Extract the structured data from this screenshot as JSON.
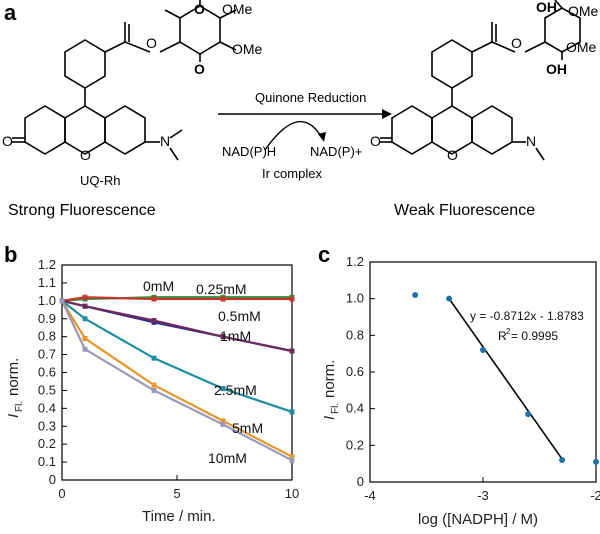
{
  "panel_a": {
    "letter": "a",
    "molecule_name": "UQ-Rh",
    "reaction_label": "Quinone Reduction",
    "cofactor_in": "NAD(P)H",
    "cofactor_out": "NAD(P)+",
    "catalyst": "Ir complex",
    "left_caption": "Strong Fluorescence",
    "right_caption": "Weak Fluorescence",
    "atoms": {
      "O": "O",
      "OH": "OH",
      "OMe": "OMe",
      "NMe2": "N"
    }
  },
  "chart_data": [
    {
      "panel": "b",
      "type": "line",
      "ylabel_main": "I",
      "ylabel_sub": "Fl.",
      "ylabel_rest": " norm.",
      "xlabel": "Time / min.",
      "xlim": [
        0,
        10
      ],
      "ylim": [
        0,
        1.2
      ],
      "xticks": [
        0,
        5,
        10
      ],
      "yticks": [
        0,
        0.1,
        0.2,
        0.3,
        0.4,
        0.5,
        0.6,
        0.7,
        0.8,
        0.9,
        1.0,
        1.1,
        1.2
      ],
      "ytick_labels": [
        "0",
        "0.1",
        "0.2",
        "0.3",
        "0.4",
        "0.5",
        "0.6",
        "0.7",
        "0.8",
        "0.9",
        "1.0",
        "1.1",
        "1.2"
      ],
      "unit": "mM",
      "series": [
        {
          "name": "0",
          "color": "#3a8a3a",
          "x": [
            0,
            1,
            4,
            7,
            10
          ],
          "y": [
            1.0,
            1.01,
            1.02,
            1.02,
            1.02
          ]
        },
        {
          "name": "0.25",
          "color": "#c0392b",
          "x": [
            0,
            1,
            4,
            7,
            10
          ],
          "y": [
            1.0,
            1.02,
            1.01,
            1.01,
            1.01
          ]
        },
        {
          "name": "0.5",
          "color": "#2e2e8f",
          "x": [
            0,
            1,
            4,
            7,
            10
          ],
          "y": [
            1.0,
            0.97,
            0.88,
            0.8,
            0.72
          ]
        },
        {
          "name": "1",
          "color": "#6b2a5b",
          "x": [
            0,
            1,
            4,
            7,
            10
          ],
          "y": [
            1.0,
            0.97,
            0.89,
            0.8,
            0.72
          ]
        },
        {
          "name": "2.5",
          "color": "#1f8ea3",
          "x": [
            0,
            1,
            4,
            7,
            10
          ],
          "y": [
            1.0,
            0.9,
            0.68,
            0.51,
            0.38
          ]
        },
        {
          "name": "5",
          "color": "#e8962a",
          "x": [
            0,
            1,
            4,
            7,
            10
          ],
          "y": [
            1.0,
            0.79,
            0.53,
            0.33,
            0.13
          ]
        },
        {
          "name": "10",
          "color": "#9a9ab8",
          "x": [
            0,
            1,
            4,
            7,
            10
          ],
          "y": [
            1.0,
            0.73,
            0.5,
            0.31,
            0.11
          ]
        }
      ],
      "annotations": [
        "0mM",
        "0.25mM",
        "0.5mM",
        "1mM",
        "2.5mM",
        "5mM",
        "10mM"
      ]
    },
    {
      "panel": "c",
      "type": "scatter",
      "xlabel": "log ([NADPH] / M)",
      "ylabel_main": "I",
      "ylabel_sub": "Fl.",
      "ylabel_rest": " norm.",
      "xlim": [
        -4,
        -2
      ],
      "ylim": [
        0,
        1.2
      ],
      "xticks": [
        -4,
        -3,
        -2
      ],
      "yticks": [
        0,
        0.2,
        0.4,
        0.6,
        0.8,
        1.0,
        1.2
      ],
      "ytick_labels": [
        "0",
        "0.2",
        "0.4",
        "0.6",
        "0.8",
        "1.0",
        "1.2"
      ],
      "points": {
        "x": [
          -3.6,
          -3.3,
          -3.0,
          -2.6,
          -2.3,
          -2.0
        ],
        "y": [
          1.02,
          1.0,
          0.72,
          0.37,
          0.12,
          0.11
        ]
      },
      "point_color": "#1f6fa8",
      "fit": {
        "x": [
          -3.3,
          -2.3
        ],
        "y": [
          1.0,
          0.125
        ]
      },
      "equation": "y = -0.8712x - 1.8783",
      "r2_label": "R",
      "r2_exp": "2",
      "r2_value": " = 0.9995"
    }
  ]
}
